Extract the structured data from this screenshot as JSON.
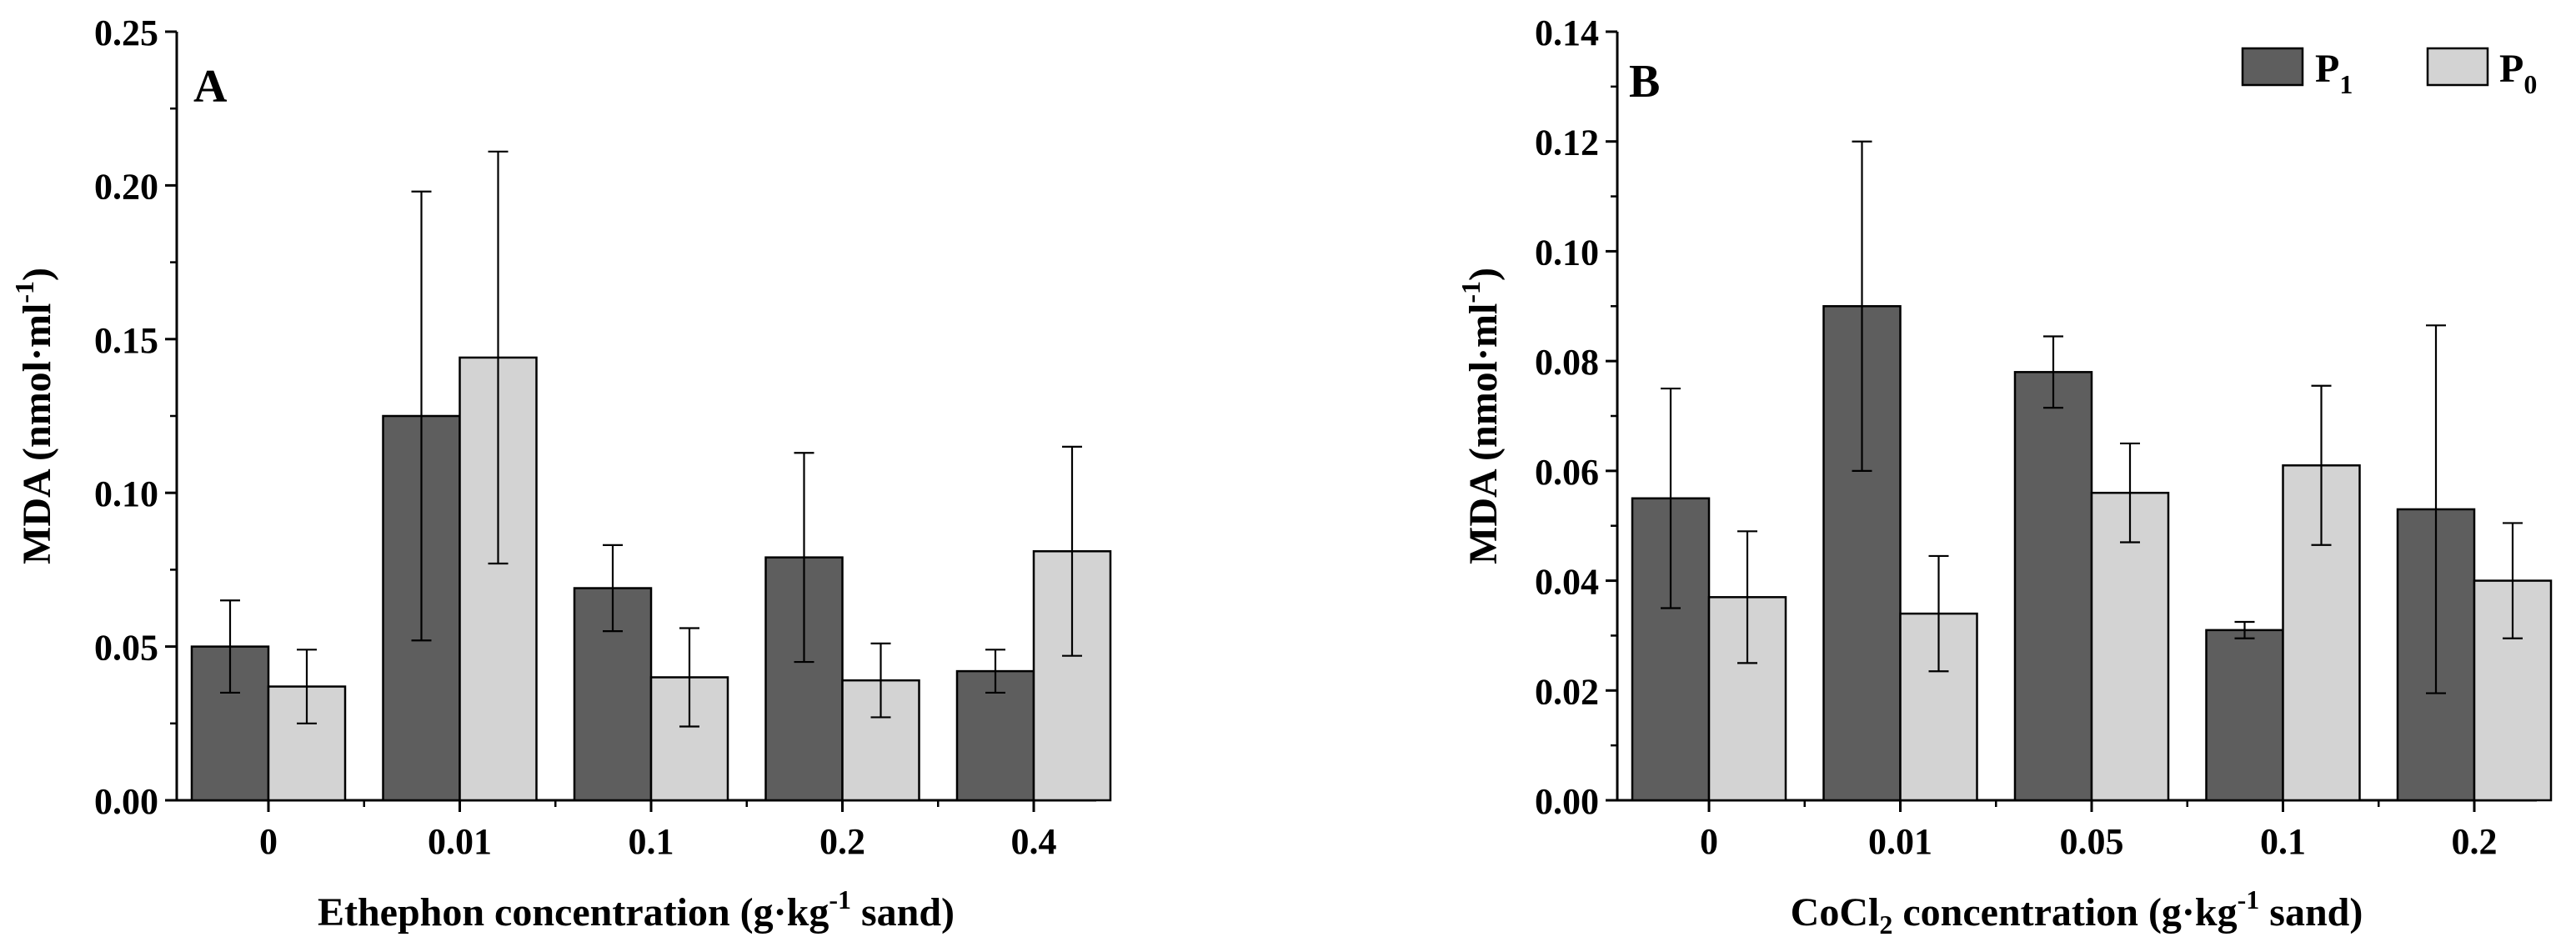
{
  "colors": {
    "p1": "#5e5e5e",
    "p0": "#d3d3d3"
  },
  "legend": {
    "items": [
      {
        "key": "p1",
        "letter": "P",
        "sub": "1"
      },
      {
        "key": "p0",
        "letter": "P",
        "sub": "0"
      }
    ]
  },
  "chart_data": [
    {
      "type": "bar",
      "panel": "A",
      "title": "",
      "xlabel_parts": [
        "Ethephon concentration (g·kg",
        "-1",
        " sand)"
      ],
      "ylabel_parts": [
        "MDA (nmol·ml",
        "-1",
        ")"
      ],
      "ylim": [
        0,
        0.25
      ],
      "yticks": [
        "0.00",
        "0.05",
        "0.10",
        "0.15",
        "0.20",
        "0.25"
      ],
      "categories": [
        "0",
        "0.01",
        "0.1",
        "0.2",
        "0.4"
      ],
      "series": [
        {
          "name": "P1",
          "values": [
            0.05,
            0.125,
            0.069,
            0.079,
            0.042
          ],
          "errors": [
            0.015,
            0.073,
            0.014,
            0.034,
            0.007
          ]
        },
        {
          "name": "P0",
          "values": [
            0.037,
            0.144,
            0.04,
            0.039,
            0.081
          ],
          "errors": [
            0.012,
            0.067,
            0.016,
            0.012,
            0.034
          ]
        }
      ]
    },
    {
      "type": "bar",
      "panel": "B",
      "title": "",
      "xlabel_parts": [
        "CoCl",
        "2",
        " concentration (g·kg",
        "-1",
        " sand)"
      ],
      "ylabel_parts": [
        "MDA (nmol·ml",
        "-1",
        ")"
      ],
      "ylim": [
        0,
        0.14
      ],
      "yticks": [
        "0.00",
        "0.02",
        "0.04",
        "0.06",
        "0.08",
        "0.10",
        "0.12",
        "0.14"
      ],
      "categories": [
        "0",
        "0.01",
        "0.05",
        "0.1",
        "0.2"
      ],
      "legend_position": "top-right",
      "series": [
        {
          "name": "P1",
          "values": [
            0.055,
            0.09,
            0.078,
            0.031,
            0.053
          ],
          "errors": [
            0.02,
            0.03,
            0.0065,
            0.0015,
            0.0335
          ]
        },
        {
          "name": "P0",
          "values": [
            0.037,
            0.034,
            0.056,
            0.061,
            0.04
          ],
          "errors": [
            0.012,
            0.0105,
            0.009,
            0.0145,
            0.0105
          ]
        }
      ]
    }
  ]
}
